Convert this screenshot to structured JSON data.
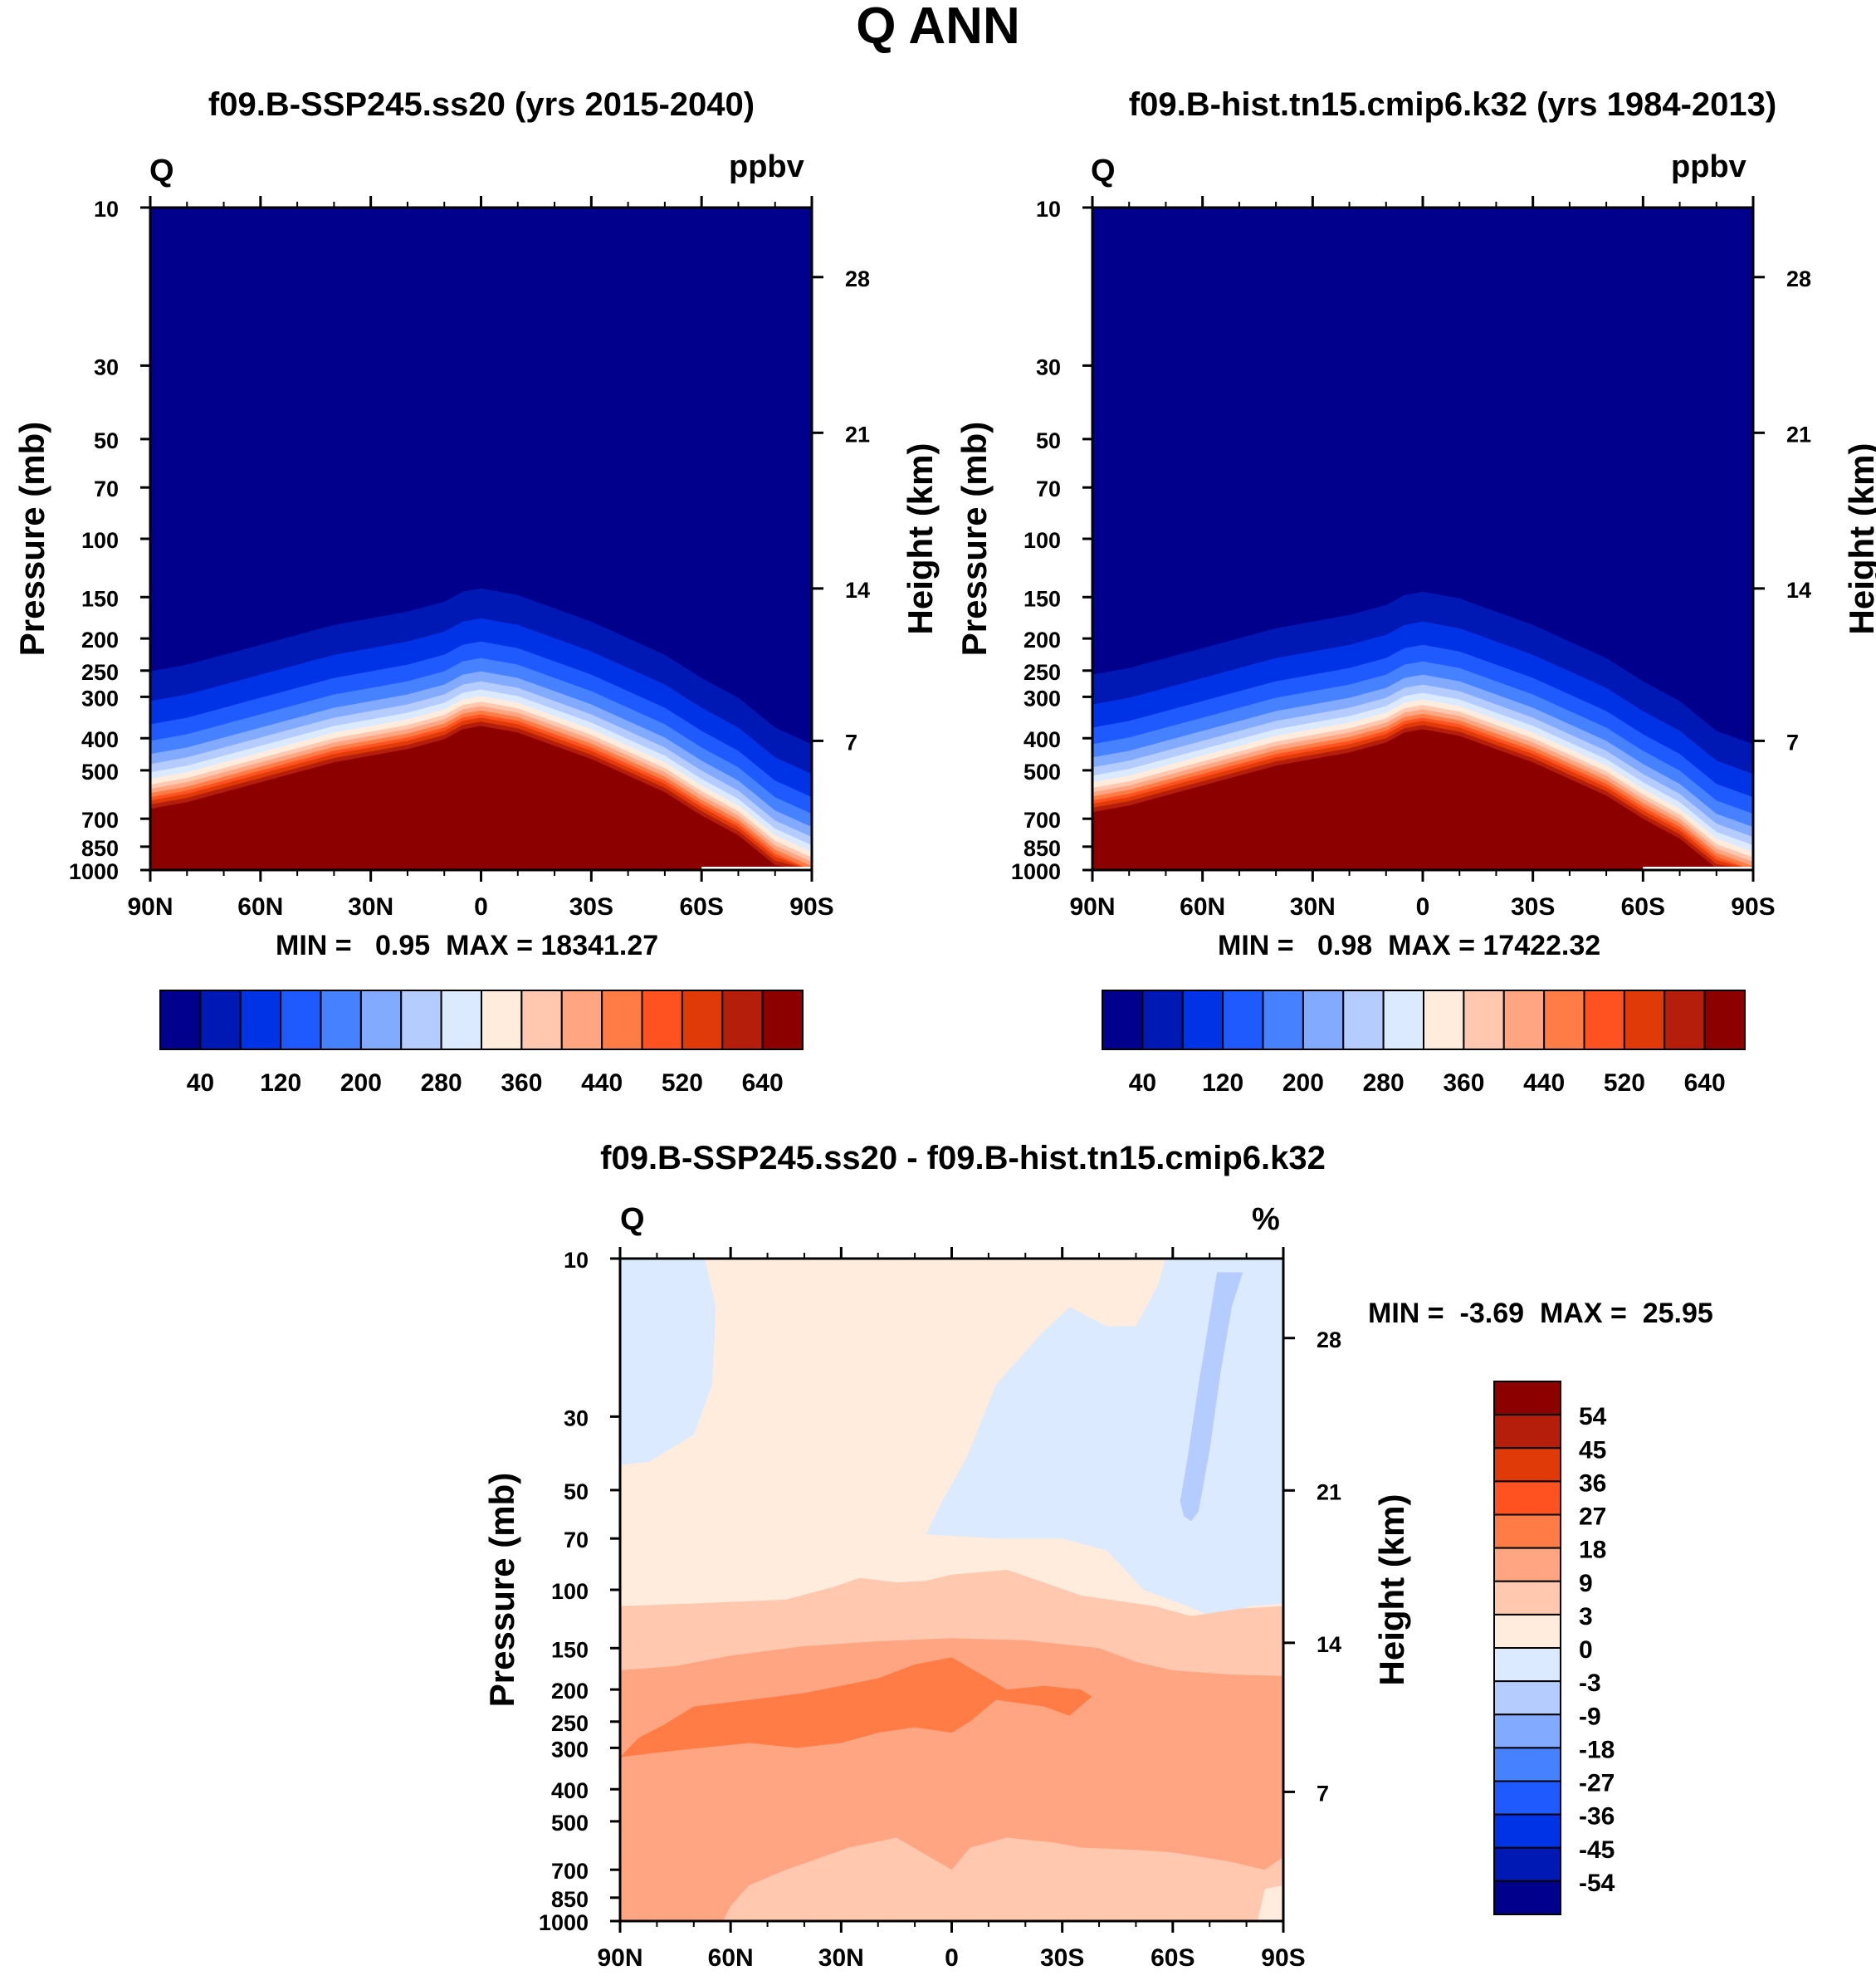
{
  "figure": {
    "title": "Q ANN"
  },
  "colors": {
    "abs_scale": [
      "#00008c",
      "#0018b4",
      "#0032e6",
      "#1e5aff",
      "#4682ff",
      "#82aaff",
      "#b4ccff",
      "#dceaff",
      "#ffecdc",
      "#ffc8af",
      "#ffa582",
      "#ff7c46",
      "#ff5220",
      "#e03a08",
      "#b41e0a",
      "#8c0000"
    ],
    "diff_scale": [
      "#00008c",
      "#0018b4",
      "#0032e6",
      "#1e5aff",
      "#4682ff",
      "#82aaff",
      "#b4ccff",
      "#dceaff",
      "#ffecdc",
      "#ffc8af",
      "#ffa582",
      "#ff7c46",
      "#ff5220",
      "#e03a08",
      "#b41e0a",
      "#8c0000"
    ]
  },
  "chart_data": [
    {
      "type": "heatmap",
      "panel": "left",
      "title": "f09.B-SSP245.ss20 (yrs 2015-2040)",
      "variable": "Q",
      "units": "ppbv",
      "ylabel": "Pressure (mb)",
      "ylabel_right": "Height (km)",
      "x_ticks": [
        "90N",
        "60N",
        "30N",
        "0",
        "30S",
        "60S",
        "90S"
      ],
      "y_ticks": [
        "10",
        "30",
        "50",
        "70",
        "100",
        "150",
        "200",
        "250",
        "300",
        "400",
        "500",
        "700",
        "850",
        "1000"
      ],
      "height_ticks": [
        "28",
        "21",
        "14",
        "7"
      ],
      "min_label": "MIN =",
      "min_value": "0.95",
      "max_label": "MAX =",
      "max_value": "18341.27",
      "colorbar_labels": [
        "40",
        "120",
        "200",
        "280",
        "360",
        "440",
        "520",
        "640"
      ],
      "surface_x": [
        -90,
        -80,
        -70,
        -60,
        -50,
        -40,
        -30,
        -20,
        -10,
        -5,
        0,
        5,
        10,
        20,
        30,
        40,
        50,
        60,
        70,
        80,
        90
      ],
      "surface_logp": [
        2.76,
        2.74,
        2.71,
        2.68,
        2.65,
        2.62,
        2.6,
        2.58,
        2.55,
        2.52,
        2.51,
        2.52,
        2.53,
        2.57,
        2.61,
        2.66,
        2.71,
        2.78,
        2.84,
        2.93,
        2.98
      ],
      "x_range": [
        -90,
        90
      ],
      "p_range": [
        10,
        1000
      ]
    },
    {
      "type": "heatmap",
      "panel": "right",
      "title": "f09.B-hist.tn15.cmip6.k32 (yrs 1984-2013)",
      "variable": "Q",
      "units": "ppbv",
      "ylabel": "Pressure (mb)",
      "ylabel_right": "Height (km)",
      "x_ticks": [
        "90N",
        "60N",
        "30N",
        "0",
        "30S",
        "60S",
        "90S"
      ],
      "y_ticks": [
        "10",
        "30",
        "50",
        "70",
        "100",
        "150",
        "200",
        "250",
        "300",
        "400",
        "500",
        "700",
        "850",
        "1000"
      ],
      "height_ticks": [
        "28",
        "21",
        "14",
        "7"
      ],
      "min_label": "MIN =",
      "min_value": "0.98",
      "max_label": "MAX =",
      "max_value": "17422.32",
      "colorbar_labels": [
        "40",
        "120",
        "200",
        "280",
        "360",
        "440",
        "520",
        "640"
      ],
      "surface_x": [
        -90,
        -80,
        -70,
        -60,
        -50,
        -40,
        -30,
        -20,
        -10,
        -5,
        0,
        5,
        10,
        20,
        30,
        40,
        50,
        60,
        70,
        80,
        90
      ],
      "surface_logp": [
        2.77,
        2.75,
        2.72,
        2.69,
        2.66,
        2.63,
        2.61,
        2.59,
        2.56,
        2.53,
        2.52,
        2.53,
        2.54,
        2.58,
        2.62,
        2.67,
        2.72,
        2.79,
        2.85,
        2.94,
        2.98
      ],
      "x_range": [
        -90,
        90
      ],
      "p_range": [
        10,
        1000
      ]
    },
    {
      "type": "heatmap",
      "panel": "difference",
      "title": "f09.B-SSP245.ss20 - f09.B-hist.tn15.cmip6.k32",
      "variable": "Q",
      "units": "%",
      "ylabel": "Pressure (mb)",
      "ylabel_right": "Height (km)",
      "x_ticks": [
        "90N",
        "60N",
        "30N",
        "0",
        "30S",
        "60S",
        "90S"
      ],
      "y_ticks": [
        "10",
        "30",
        "50",
        "70",
        "100",
        "150",
        "200",
        "250",
        "300",
        "400",
        "500",
        "700",
        "850",
        "1000"
      ],
      "height_ticks": [
        "28",
        "21",
        "14",
        "7"
      ],
      "min_label": "MIN =",
      "min_value": "-3.69",
      "max_label": "MAX =",
      "max_value": "25.95",
      "colorbar_labels": [
        "54",
        "45",
        "36",
        "27",
        "18",
        "9",
        "3",
        "0",
        "-3",
        "-9",
        "-18",
        "-27",
        "-36",
        "-45",
        "-54"
      ],
      "x_range": [
        -90,
        90
      ],
      "p_range": [
        10,
        1000
      ]
    }
  ]
}
